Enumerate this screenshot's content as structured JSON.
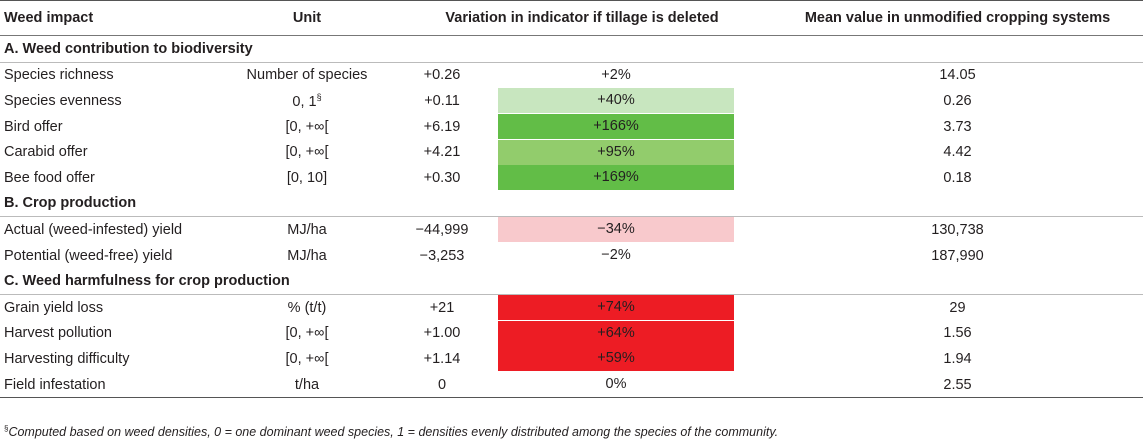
{
  "colors": {
    "light_green": "#c8e6bf",
    "green": "#62bd47",
    "mid_green": "#92cc6c",
    "pink": "#f8c9cc",
    "red": "#ed1c24"
  },
  "header": {
    "col1": "Weed impact",
    "col2": "Unit",
    "col3": "Variation in indicator if tillage is deleted",
    "col4": "Mean value in unmodified cropping systems"
  },
  "sections": [
    {
      "title": "A. Weed contribution to biodiversity",
      "rows": [
        {
          "name": "Species richness",
          "unit": "Number of species",
          "unit_sup": "",
          "abs": "+0.26",
          "pct": "+2%",
          "color": "",
          "mean": "14.05"
        },
        {
          "name": "Species evenness",
          "unit": "0, 1",
          "unit_sup": "§",
          "abs": "+0.11",
          "pct": "+40%",
          "color": "#c8e6bf",
          "mean": "0.26"
        },
        {
          "name": "Bird offer",
          "unit": "[0, +∞[",
          "unit_sup": "",
          "abs": "+6.19",
          "pct": "+166%",
          "color": "#62bd47",
          "mean": "3.73"
        },
        {
          "name": "Carabid offer",
          "unit": "[0, +∞[",
          "unit_sup": "",
          "abs": "+4.21",
          "pct": "+95%",
          "color": "#92cc6c",
          "mean": "4.42"
        },
        {
          "name": "Bee food offer",
          "unit": "[0, 10]",
          "unit_sup": "",
          "abs": "+0.30",
          "pct": "+169%",
          "color": "#62bd47",
          "mean": "0.18"
        }
      ]
    },
    {
      "title": "B. Crop production",
      "rows": [
        {
          "name": "Actual (weed-infested) yield",
          "unit": "MJ/ha",
          "unit_sup": "",
          "abs": "−44,999",
          "pct": "−34%",
          "color": "#f8c9cc",
          "mean": "130,738"
        },
        {
          "name": "Potential (weed-free) yield",
          "unit": "MJ/ha",
          "unit_sup": "",
          "abs": "−3,253",
          "pct": "−2%",
          "color": "",
          "mean": "187,990"
        }
      ]
    },
    {
      "title": "C. Weed harmfulness for crop production",
      "rows": [
        {
          "name": "Grain yield loss",
          "unit": "% (t/t)",
          "unit_sup": "",
          "abs": "+21",
          "pct": "+74%",
          "color": "#ed1c24",
          "mean": "29"
        },
        {
          "name": "Harvest pollution",
          "unit": "[0, +∞[",
          "unit_sup": "",
          "abs": "+1.00",
          "pct": "+64%",
          "color": "#ed1c24",
          "mean": "1.56"
        },
        {
          "name": "Harvesting difficulty",
          "unit": "[0, +∞[",
          "unit_sup": "",
          "abs": "+1.14",
          "pct": "+59%",
          "color": "#ed1c24",
          "mean": "1.94"
        },
        {
          "name": "Field infestation",
          "unit": "t/ha",
          "unit_sup": "",
          "abs": "0",
          "pct": "0%",
          "color": "",
          "mean": "2.55"
        }
      ]
    }
  ],
  "footnote": {
    "mark": "§",
    "text": "Computed based on weed densities, 0 = one dominant weed species, 1 = densities evenly distributed among the species of the community."
  }
}
